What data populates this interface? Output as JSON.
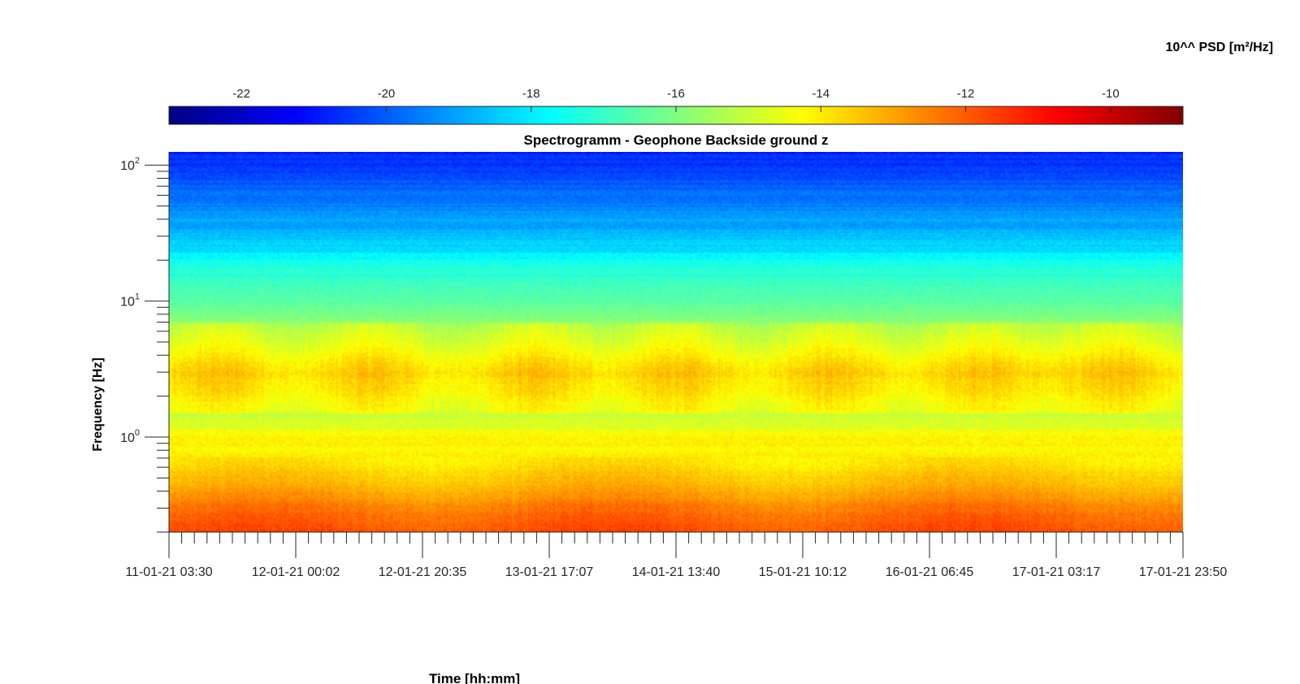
{
  "chart_data": {
    "type": "heatmap",
    "title": "Spectrogramm - Geophone Backside ground z",
    "xlabel": "Time [hh:mm]",
    "ylabel": "Frequency [Hz]",
    "colorbar": {
      "label": "10^^ PSD [m²/Hz]",
      "range": [
        -23,
        -9
      ],
      "ticks": [
        -22,
        -20,
        -18,
        -16,
        -14,
        -12,
        -10
      ],
      "tick_labels": [
        "-22",
        "-20",
        "-18",
        "-16",
        "-14",
        "-12",
        "-10"
      ],
      "colormap": "jet"
    },
    "x_ticks": {
      "labels": [
        "11-01-21 03:30",
        "12-01-21 00:02",
        "12-01-21 20:35",
        "13-01-21 17:07",
        "14-01-21 13:40",
        "15-01-21 10:12",
        "16-01-21 06:45",
        "17-01-21 03:17",
        "17-01-21 23:50"
      ]
    },
    "y_axis": {
      "scale": "log",
      "range": [
        0.2,
        125
      ],
      "major_ticks": [
        1,
        10,
        100
      ],
      "major_tick_labels": [
        {
          "base": "10",
          "exp": "0"
        },
        {
          "base": "10",
          "exp": "1"
        },
        {
          "base": "10",
          "exp": "2"
        }
      ]
    },
    "psd_profile_log10": [
      {
        "f": 0.2,
        "psd": -11.8
      },
      {
        "f": 0.3,
        "psd": -12.4
      },
      {
        "f": 0.45,
        "psd": -13.3
      },
      {
        "f": 0.7,
        "psd": -14.0
      },
      {
        "f": 1.0,
        "psd": -14.5
      },
      {
        "f": 1.5,
        "psd": -15.0
      },
      {
        "f": 3.0,
        "psd": -14.2
      },
      {
        "f": 5.0,
        "psd": -15.2
      },
      {
        "f": 10.0,
        "psd": -16.5
      },
      {
        "f": 15.0,
        "psd": -17.0
      },
      {
        "f": 25.0,
        "psd": -18.3
      },
      {
        "f": 50.0,
        "psd": -19.5
      },
      {
        "f": 125.0,
        "psd": -20.8
      }
    ],
    "daily_activity_peaks_x_fraction": [
      0.05,
      0.2,
      0.36,
      0.5,
      0.65,
      0.8,
      0.93
    ],
    "grid": false
  },
  "colors": {
    "axis": "#262626",
    "background": "#ffffff"
  }
}
